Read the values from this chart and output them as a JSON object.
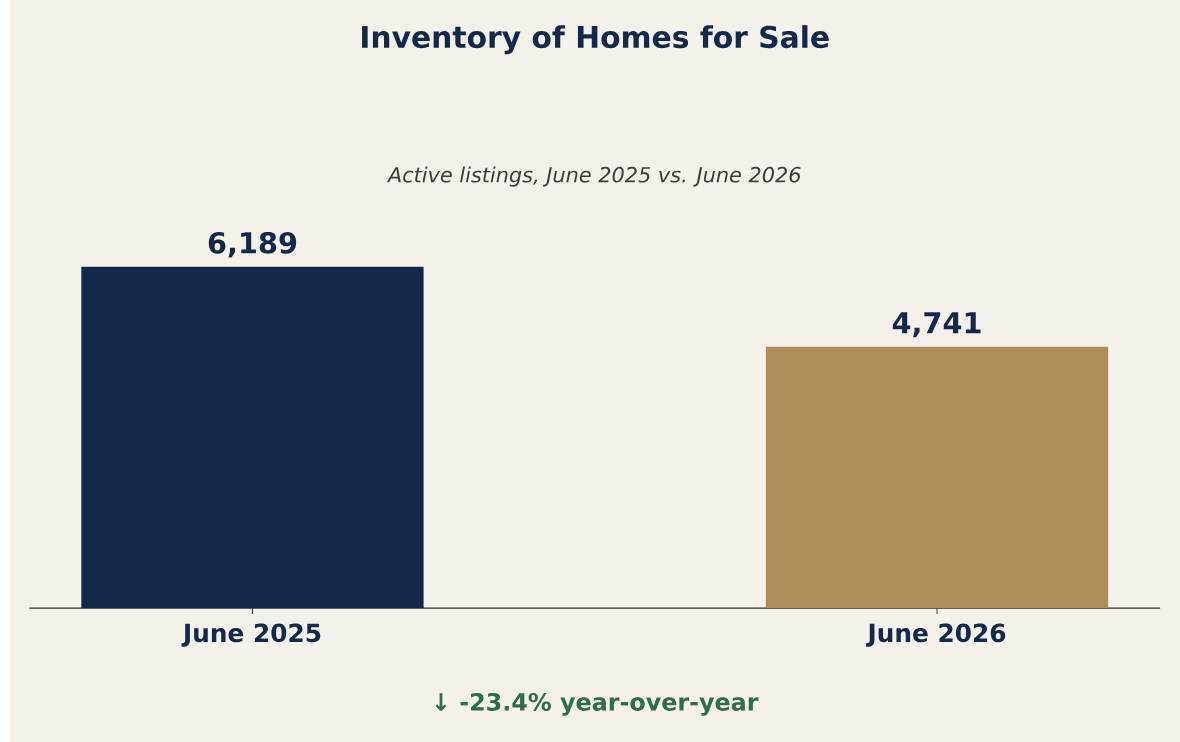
{
  "chart_data": {
    "type": "bar",
    "title": "Inventory of Homes for Sale",
    "subtitle": "Active listings, June 2025 vs. June 2026",
    "categories": [
      "June 2025",
      "June 2026"
    ],
    "values": [
      6189,
      4741
    ],
    "colors": [
      "#13284a",
      "#b08c58"
    ],
    "value_labels": [
      "6,189",
      "4,741"
    ],
    "tick_labels": "x",
    "annotations": [
      "↓ -23.4% year-over-year"
    ]
  }
}
